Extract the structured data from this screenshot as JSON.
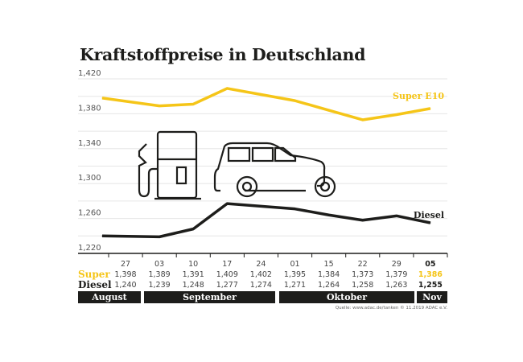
{
  "title": "Kraftstoffpreise in Deutschland",
  "chart_data": {
    "type": "line",
    "title": "Kraftstoffpreise in Deutschland",
    "categories": [
      "27",
      "03",
      "10",
      "17",
      "24",
      "01",
      "15",
      "22",
      "29",
      "05"
    ],
    "months": [
      "August",
      "September",
      "Oktober",
      "Nov"
    ],
    "series": [
      {
        "name": "Super E10",
        "row_label": "Super",
        "color": "#f5c518",
        "values": [
          1.398,
          1.389,
          1.391,
          1.409,
          1.402,
          1.395,
          1.384,
          1.373,
          1.379,
          1.386
        ],
        "labels": [
          "1,398",
          "1,389",
          "1,391",
          "1,409",
          "1,402",
          "1,395",
          "1,384",
          "1,373",
          "1,379",
          "1,386"
        ]
      },
      {
        "name": "Diesel",
        "row_label": "Diesel",
        "color": "#1d1d1b",
        "values": [
          1.24,
          1.239,
          1.248,
          1.277,
          1.274,
          1.271,
          1.264,
          1.258,
          1.263,
          1.255
        ],
        "labels": [
          "1,240",
          "1,239",
          "1,248",
          "1,277",
          "1,274",
          "1,271",
          "1,264",
          "1,258",
          "1,263",
          "1,255"
        ]
      }
    ],
    "yticks": [
      "1,220",
      "1,260",
      "1,300",
      "1,340",
      "1,380",
      "1,420"
    ],
    "ylim": [
      1.22,
      1.42
    ],
    "grid": true
  },
  "source": "Quelle: www.adac.de/tanken   © 11.2019  ADAC e.V.",
  "icons": [
    "fuel-pump-icon",
    "car-icon"
  ]
}
